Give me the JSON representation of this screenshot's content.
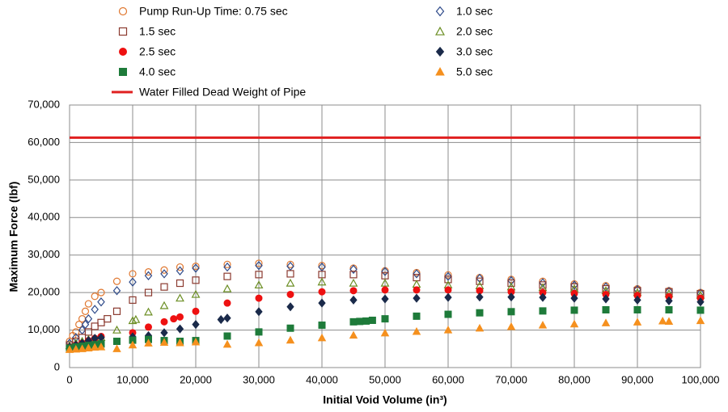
{
  "chart_data": {
    "type": "scatter",
    "xlabel": "Initial Void Volume (in³)",
    "ylabel": "Maximum Force (lbf)",
    "xlim": [
      0,
      100000
    ],
    "ylim": [
      0,
      70000
    ],
    "xticks": [
      0,
      {
        "value": 10000,
        "label": "10,000"
      },
      {
        "value": 20000,
        "label": "20,000"
      },
      {
        "value": 30000,
        "label": "30,000"
      },
      {
        "value": 40000,
        "label": "40,000"
      },
      {
        "value": 50000,
        "label": "50,000"
      },
      {
        "value": 60000,
        "label": "60,000"
      },
      {
        "value": 70000,
        "label": "70,000"
      },
      {
        "value": 80000,
        "label": "80,000"
      },
      {
        "value": 90000,
        "label": "90,000"
      },
      {
        "value": 100000,
        "label": "100,000"
      }
    ],
    "yticks": [
      0,
      {
        "value": 10000,
        "label": "10,000"
      },
      {
        "value": 20000,
        "label": "20,000"
      },
      {
        "value": 30000,
        "label": "30,000"
      },
      {
        "value": 40000,
        "label": "40,000"
      },
      {
        "value": 50000,
        "label": "50,000"
      },
      {
        "value": 60000,
        "label": "60,000"
      },
      {
        "value": 70000,
        "label": "70,000"
      }
    ],
    "grid": true,
    "legend": "top",
    "series": [
      {
        "name": "Pump Run-Up Time: 0.75 sec",
        "color": "#e0772f",
        "marker": "circle",
        "filled": false,
        "x": [
          0,
          500,
          1000,
          1500,
          2000,
          2500,
          3000,
          4000,
          5000,
          7500,
          10000,
          12500,
          15000,
          17500,
          20000,
          25000,
          30000,
          35000,
          40000,
          45000,
          50000,
          55000,
          60000,
          65000,
          70000,
          75000,
          80000,
          85000,
          90000,
          95000,
          100000
        ],
        "values": [
          7000,
          8500,
          9500,
          11500,
          13000,
          15000,
          17000,
          19000,
          20000,
          23000,
          25000,
          25500,
          26000,
          26800,
          27000,
          27500,
          27800,
          27500,
          27200,
          26500,
          25800,
          25300,
          24700,
          24000,
          23500,
          23000,
          22300,
          21800,
          21000,
          20500,
          20000
        ]
      },
      {
        "name": "1.0 sec",
        "color": "#2f4b8a",
        "marker": "diamond",
        "filled": false,
        "x": [
          0,
          1000,
          2000,
          2500,
          3000,
          4000,
          5000,
          7500,
          10000,
          12500,
          15000,
          17500,
          20000,
          25000,
          30000,
          35000,
          40000,
          45000,
          50000,
          55000,
          60000,
          65000,
          70000,
          75000,
          80000,
          85000,
          90000,
          95000,
          100000
        ],
        "values": [
          6500,
          8000,
          10000,
          11500,
          13000,
          15500,
          17500,
          20500,
          22800,
          24500,
          25000,
          25800,
          26500,
          26800,
          27200,
          27000,
          26800,
          26200,
          25600,
          25000,
          24300,
          23800,
          23200,
          22600,
          22000,
          21500,
          20800,
          20300,
          19800
        ]
      },
      {
        "name": "1.5 sec",
        "color": "#8b3a2f",
        "marker": "square",
        "filled": false,
        "x": [
          0,
          1000,
          2000,
          3000,
          4000,
          5000,
          6000,
          7500,
          10000,
          12500,
          15000,
          17500,
          20000,
          25000,
          30000,
          35000,
          40000,
          45000,
          50000,
          55000,
          60000,
          65000,
          70000,
          75000,
          80000,
          85000,
          90000,
          95000,
          100000
        ],
        "values": [
          6000,
          7000,
          8000,
          9500,
          11000,
          12000,
          13000,
          15000,
          18000,
          20000,
          21500,
          22500,
          23300,
          24300,
          24800,
          25000,
          24800,
          24800,
          24500,
          24000,
          23500,
          23000,
          22500,
          22000,
          21500,
          21000,
          20500,
          20200,
          19700
        ]
      },
      {
        "name": "2.0 sec",
        "color": "#6b8e23",
        "marker": "triangle",
        "filled": false,
        "x": [
          0,
          1000,
          2000,
          3000,
          5000,
          7500,
          10000,
          10500,
          12500,
          15000,
          17500,
          20000,
          25000,
          30000,
          35000,
          40000,
          45000,
          50000,
          55000,
          60000,
          65000,
          70000,
          75000,
          80000,
          85000,
          90000,
          95000,
          100000
        ],
        "values": [
          5800,
          6500,
          7000,
          7500,
          8000,
          10000,
          12500,
          12800,
          14800,
          16500,
          18500,
          19500,
          21000,
          22000,
          22500,
          22800,
          22500,
          22500,
          22200,
          22000,
          21800,
          21500,
          21300,
          21000,
          20500,
          20000,
          19700,
          19300
        ]
      },
      {
        "name": "2.5 sec",
        "color": "#ee1111",
        "marker": "circle",
        "filled": true,
        "x": [
          0,
          1000,
          2000,
          3000,
          4000,
          5000,
          10000,
          12500,
          15000,
          16500,
          17500,
          20000,
          25000,
          30000,
          35000,
          40000,
          45000,
          50000,
          55000,
          60000,
          65000,
          70000,
          75000,
          80000,
          85000,
          90000,
          95000,
          100000
        ],
        "values": [
          5500,
          6000,
          6500,
          7200,
          7800,
          8300,
          9300,
          10800,
          12200,
          13000,
          13500,
          15000,
          17200,
          18500,
          19500,
          20200,
          20500,
          20700,
          20700,
          20700,
          20500,
          20200,
          20000,
          19700,
          19500,
          19200,
          18900,
          18500
        ]
      },
      {
        "name": "3.0 sec",
        "color": "#1a2a4a",
        "marker": "diamond",
        "filled": true,
        "x": [
          0,
          1000,
          2000,
          3000,
          4000,
          5000,
          10000,
          12500,
          15000,
          17500,
          20000,
          24000,
          25000,
          30000,
          35000,
          40000,
          45000,
          50000,
          55000,
          60000,
          65000,
          70000,
          75000,
          80000,
          85000,
          90000,
          95000,
          100000
        ],
        "values": [
          5500,
          6000,
          6500,
          7200,
          7800,
          8000,
          8200,
          8500,
          9300,
          10300,
          11500,
          12800,
          13200,
          14900,
          16200,
          17200,
          18000,
          18300,
          18500,
          18700,
          18800,
          18800,
          18700,
          18500,
          18300,
          18000,
          17800,
          17500
        ]
      },
      {
        "name": "4.0 sec",
        "color": "#1e7b3a",
        "marker": "square",
        "filled": true,
        "x": [
          0,
          1000,
          2000,
          3000,
          4000,
          5000,
          7500,
          10000,
          12500,
          15000,
          17500,
          20000,
          25000,
          30000,
          35000,
          40000,
          45000,
          46000,
          47000,
          48000,
          50000,
          55000,
          60000,
          65000,
          70000,
          75000,
          80000,
          85000,
          90000,
          95000,
          100000
        ],
        "values": [
          5200,
          5500,
          5700,
          5900,
          6100,
          6300,
          7000,
          7300,
          7500,
          7200,
          7000,
          7200,
          8400,
          9500,
          10500,
          11300,
          12200,
          12300,
          12400,
          12600,
          13000,
          13700,
          14200,
          14600,
          14900,
          15100,
          15300,
          15400,
          15400,
          15400,
          15300
        ]
      },
      {
        "name": "5.0 sec",
        "color": "#f5901e",
        "marker": "triangle",
        "filled": true,
        "x": [
          0,
          1000,
          2000,
          3000,
          4000,
          5000,
          7500,
          10000,
          12500,
          15000,
          17500,
          20000,
          25000,
          30000,
          35000,
          40000,
          45000,
          50000,
          55000,
          60000,
          65000,
          70000,
          75000,
          80000,
          85000,
          90000,
          94000,
          95000,
          100000
        ],
        "values": [
          4800,
          4900,
          5000,
          5200,
          5400,
          5500,
          5000,
          6000,
          6500,
          6700,
          6600,
          6800,
          6200,
          6600,
          7300,
          7900,
          8600,
          9200,
          9600,
          10000,
          10500,
          10900,
          11300,
          11600,
          11900,
          12100,
          12400,
          12300,
          12500
        ]
      },
      {
        "name": "Water Filled Dead Weight of Pipe",
        "color": "#e02020",
        "marker": "line",
        "filled": true,
        "x": [
          0,
          100000
        ],
        "values": [
          61300,
          61300
        ]
      }
    ]
  }
}
